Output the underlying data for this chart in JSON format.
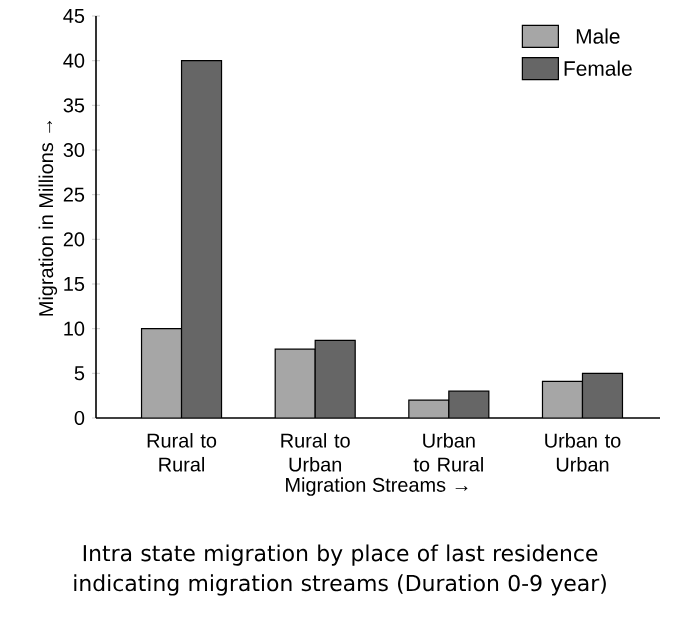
{
  "chart_data": {
    "type": "bar",
    "xlabel": "Migration Streams →",
    "ylabel": "Migration in Millions →",
    "categories": [
      "Rural to Rural",
      "Rural to Urban",
      "Urban to Rural",
      "Urban to Urban"
    ],
    "series": [
      {
        "name": "Male",
        "color": "#a6a6a6",
        "values": [
          10,
          7.7,
          2,
          4.1
        ]
      },
      {
        "name": "Female",
        "color": "#666666",
        "values": [
          40,
          8.7,
          3,
          5
        ]
      }
    ],
    "ylim": [
      0,
      45
    ],
    "yticks": [
      0,
      5,
      10,
      15,
      20,
      25,
      30,
      35,
      40,
      45
    ],
    "legend": "top right",
    "annotations": [
      "Intra state migration by place of last residence indicating migration streams (Duration 0-9 year)"
    ]
  }
}
